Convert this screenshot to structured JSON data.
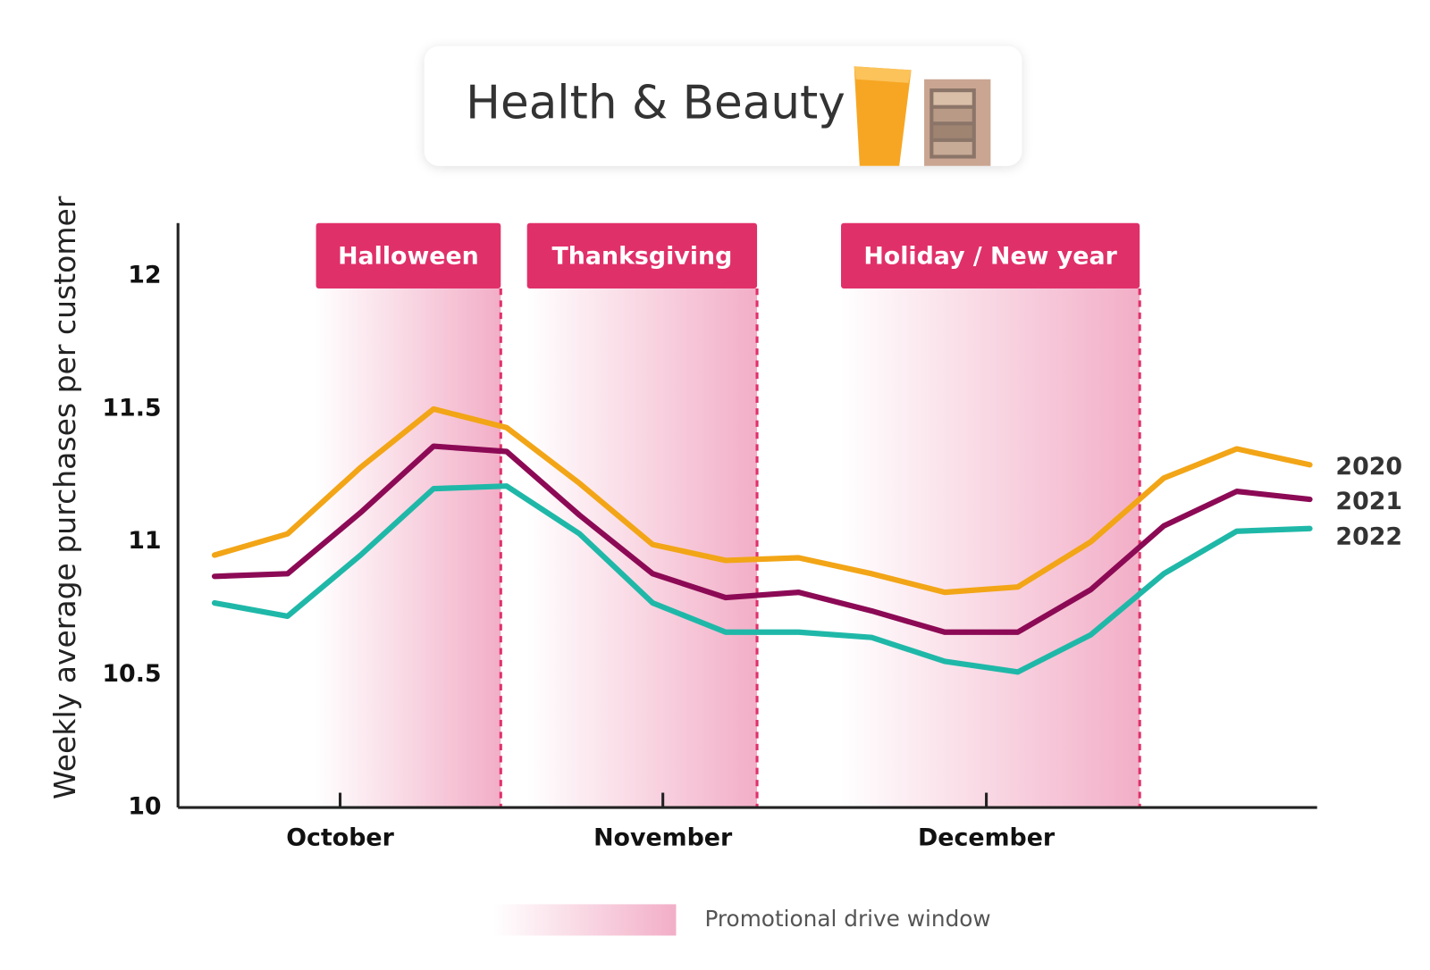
{
  "chart_data": {
    "type": "line",
    "title": "Health & Beauty",
    "y_label": "Weekly average purchases per customer",
    "x": [
      0,
      1,
      2,
      3,
      4,
      5,
      6,
      7,
      8,
      9,
      10,
      11,
      12,
      13,
      14,
      15
    ],
    "xlim": [
      -0.5,
      15.1
    ],
    "xticks": [
      {
        "value": 1.72,
        "label": "October"
      },
      {
        "value": 6.14,
        "label": "November"
      },
      {
        "value": 10.57,
        "label": "December"
      }
    ],
    "ylim": [
      10,
      12.2
    ],
    "yticks": [
      10,
      10.5,
      11,
      11.5,
      12
    ],
    "grid": false,
    "series": [
      {
        "name": "2020",
        "color": "#f2a516",
        "values": [
          10.95,
          11.03,
          11.28,
          11.5,
          11.43,
          11.22,
          10.99,
          10.93,
          10.94,
          10.88,
          10.81,
          10.83,
          11.0,
          11.24,
          11.35,
          11.29
        ]
      },
      {
        "name": "2021",
        "color": "#8c0a55",
        "values": [
          10.87,
          10.88,
          11.11,
          11.36,
          11.34,
          11.1,
          10.88,
          10.79,
          10.81,
          10.74,
          10.66,
          10.66,
          10.82,
          11.06,
          11.19,
          11.16
        ]
      },
      {
        "name": "2022",
        "color": "#1fb8a8",
        "values": [
          10.77,
          10.72,
          10.95,
          11.2,
          11.21,
          11.03,
          10.77,
          10.66,
          10.66,
          10.64,
          10.55,
          10.51,
          10.65,
          10.88,
          11.04,
          11.05
        ]
      }
    ],
    "windows": [
      {
        "label": "Halloween",
        "start": 1.39,
        "end": 3.92
      },
      {
        "label": "Thanksgiving",
        "start": 4.28,
        "end": 7.43
      },
      {
        "label": "Holiday / New year",
        "start": 8.58,
        "end": 12.67
      }
    ],
    "window_color": "#e0306a",
    "legend_label": "Promotional drive window"
  }
}
